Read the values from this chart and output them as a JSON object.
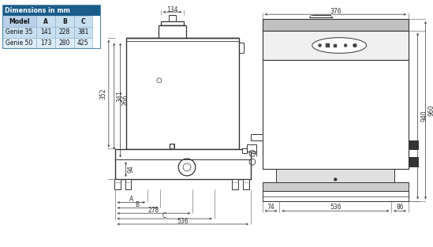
{
  "table_header_bg": "#1a5c8a",
  "table_row1_bg": "#c8dff0",
  "table_row2_bg": "#ddeef8",
  "table_header_color": "white",
  "table_data": [
    [
      "Model",
      "A",
      "B",
      "C"
    ],
    [
      "Genie 35",
      "141",
      "228",
      "381"
    ],
    [
      "Genie 50",
      "173",
      "280",
      "425"
    ]
  ],
  "dim_134": "134",
  "dim_376": "376",
  "dim_352": "352",
  "dim_341": "341",
  "dim_266": "266",
  "dim_94": "94",
  "dim_A": "A",
  "dim_B": "B",
  "dim_278": "278",
  "dim_C": "C",
  "dim_536L": "536",
  "dim_536R": "536",
  "dim_940": "940",
  "dim_960": "960",
  "dim_74": "74",
  "dim_86": "86"
}
